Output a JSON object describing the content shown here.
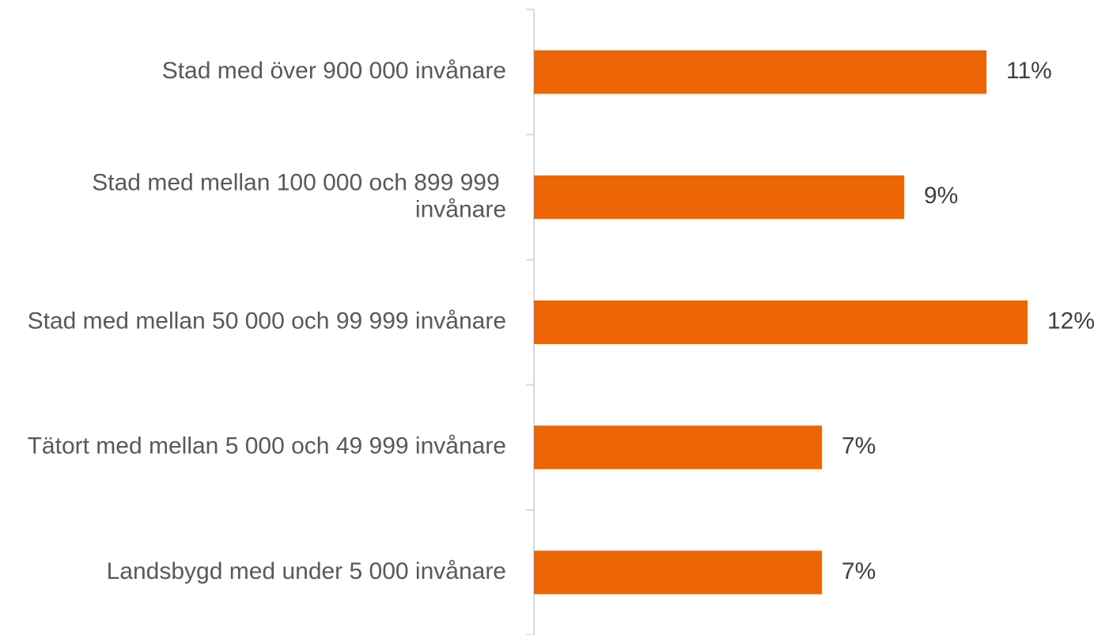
{
  "chart_data": {
    "type": "barh",
    "categories": [
      "Stad med över 900 000 invånare",
      "Stad med mellan 100 000 och 899 999 invånare",
      "Stad med mellan 50 000 och 99 999 invånare",
      "Tätort med mellan 5 000 och 49 999 invånare",
      "Landsbygd med under 5 000 invånare"
    ],
    "values": [
      11,
      9,
      12,
      7,
      7
    ],
    "value_labels": [
      "11%",
      "9%",
      "12%",
      "7%",
      "7%"
    ],
    "color": "#ec6608",
    "xlim": [
      0,
      13.5
    ]
  }
}
